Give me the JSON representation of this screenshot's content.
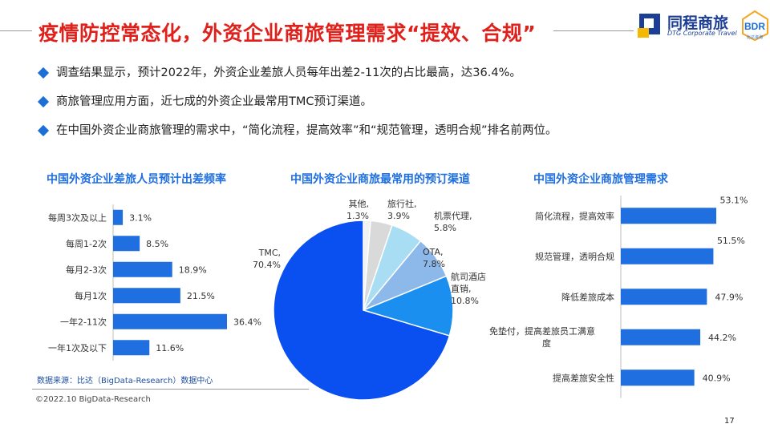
{
  "header": {
    "title": "疫情防控常态化，外资企业商旅管理需求“提效、合规”",
    "logo_cn": "同程商旅",
    "logo_en": "DTG Corporate Travel",
    "bdr_logo": "BDR",
    "bdr_sub": "比达咨询"
  },
  "bullets": [
    "调查结果显示，预计2022年，外资企业差旅人员每年出差2-11次的占比最高，达36.4%。",
    "商旅管理应用方面，近七成的外资企业最常用TMC预订渠道。",
    "在中国外资企业商旅管理的需求中，“简化流程，提高效率”和“规范管理，透明合规”排名前两位。"
  ],
  "chart_data": [
    {
      "type": "bar",
      "orientation": "horizontal",
      "title": "中国外资企业差旅人员预计出差频率",
      "categories": [
        "每周3次及以上",
        "每周1-2次",
        "每月2-3次",
        "每月1次",
        "一年2-11次",
        "一年1次及以下"
      ],
      "values": [
        3.1,
        8.5,
        18.9,
        21.5,
        36.4,
        11.6
      ],
      "labels": [
        "3.1%",
        "8.5%",
        "18.9%",
        "21.5%",
        "36.4%",
        "11.6%"
      ],
      "unit": "%",
      "xlim": [
        0,
        40
      ],
      "grid": false,
      "color": "#1f6fe0"
    },
    {
      "type": "pie",
      "title": "中国外资企业商旅最常用的预订渠道",
      "slices": [
        {
          "name": "其他",
          "label": "其他,\n1.3%",
          "value": 1.3,
          "color": "#f2f2f2"
        },
        {
          "name": "旅行社",
          "label": "旅行社,\n3.9%",
          "value": 3.9,
          "color": "#d9d9d9"
        },
        {
          "name": "机票代理",
          "label": "机票代理,\n5.8%",
          "value": 5.8,
          "color": "#a9ddf3"
        },
        {
          "name": "OTA",
          "label": "OTA,\n7.8%",
          "value": 7.8,
          "color": "#8cb9ea"
        },
        {
          "name": "航司酒店直销",
          "label": "航司酒店\n直销,\n10.8%",
          "value": 10.8,
          "color": "#1a8ff0"
        },
        {
          "name": "TMC",
          "label": "TMC,\n70.4%",
          "value": 70.4,
          "color": "#0a4ff0"
        }
      ]
    },
    {
      "type": "bar",
      "orientation": "horizontal",
      "title": "中国外资企业商旅管理需求",
      "categories": [
        "简化流程，提高效率",
        "规范管理，透明合规",
        "降低差旅成本",
        "免垫付，提高差旅员工满意\n度",
        "提高差旅安全性"
      ],
      "values": [
        53.1,
        51.5,
        47.9,
        44.2,
        40.9
      ],
      "labels": [
        "53.1%",
        "51.5%",
        "47.9%",
        "44.2%",
        "40.9%"
      ],
      "unit": "%",
      "xlim": [
        0,
        55
      ],
      "grid": false,
      "color": "#1f6fe0"
    }
  ],
  "footer": {
    "source": "数据来源：比达（BigData-Research）数据中心",
    "copyright": "©2022.10 BigData-Research",
    "page_number": "17"
  }
}
